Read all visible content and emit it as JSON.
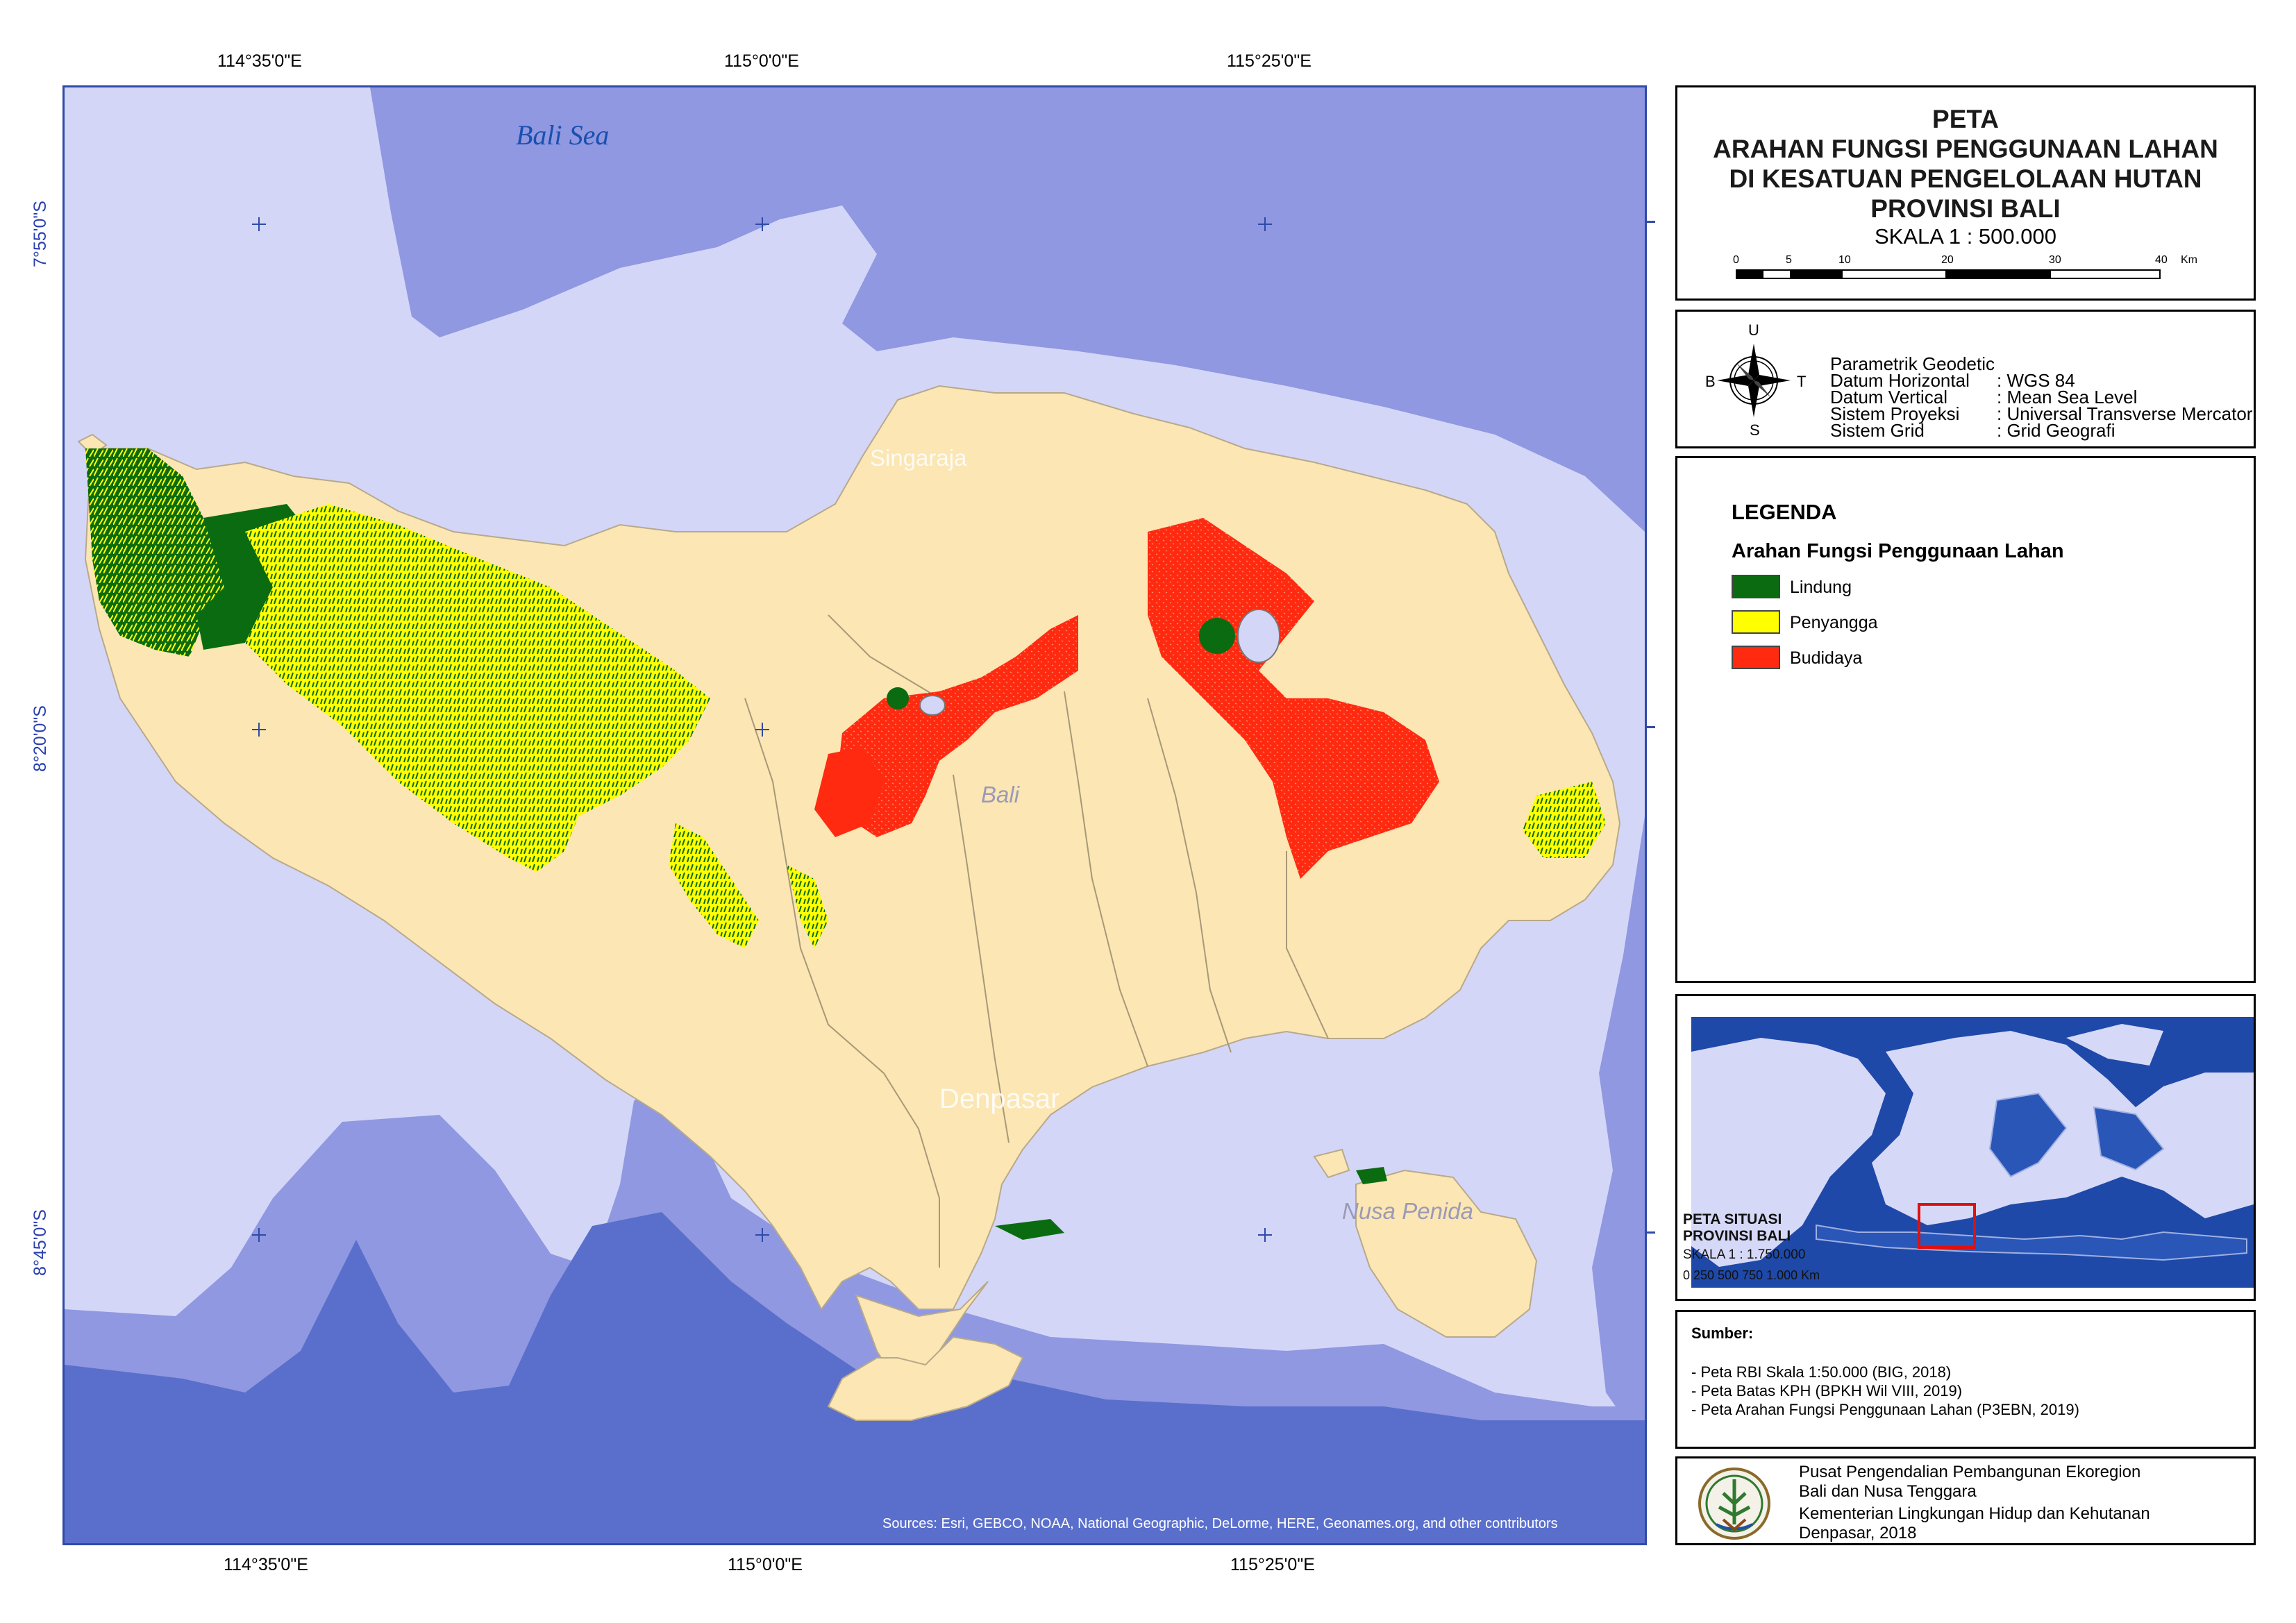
{
  "coordinates": {
    "top_lon": [
      "114°35'0\"E",
      "115°0'0\"E",
      "115°25'0\"E"
    ],
    "bottom_lon": [
      "114°35'0\"E",
      "115°0'0\"E",
      "115°25'0\"E"
    ],
    "left_lat": [
      "7°55'0\"S",
      "8°20'0\"S",
      "8°45'0\"S"
    ]
  },
  "map": {
    "sea_label": "Bali Sea",
    "places": [
      "Singaraja",
      "Bali",
      "Denpasar",
      "Nusa Penida"
    ],
    "attribution": "Sources: Esri, GEBCO, NOAA, National Geographic, DeLorme, HERE, Geonames.org, and other contributors",
    "colors": {
      "sea_light": "#d4d6f8",
      "sea_mid": "#8f98e0",
      "sea_deep": "#5a6fcc",
      "land": "#fbe6b4",
      "lindung": "#0b6b10",
      "penyangga": "#ffff00",
      "budidaya": "#ff2a10"
    }
  },
  "title": {
    "lines": [
      "PETA",
      "ARAHAN FUNGSI PENGGUNAAN LAHAN",
      "DI KESATUAN PENGELOLAAN HUTAN",
      "PROVINSI BALI"
    ],
    "scale": "SKALA  1 : 500.000",
    "scalebar_ticks": [
      "0",
      "5",
      "10",
      "20",
      "30",
      "40"
    ],
    "scalebar_unit": "Km"
  },
  "params": {
    "compass": {
      "n": "U",
      "s": "S",
      "w": "B",
      "e": "T"
    },
    "heading": "Parametrik Geodetic",
    "rows": [
      {
        "label": "Datum Horizontal",
        "value": ": WGS 84"
      },
      {
        "label": "Datum Vertical",
        "value": ": Mean Sea Level"
      },
      {
        "label": "Sistem Proyeksi",
        "value": ": Universal Transverse Mercator"
      },
      {
        "label": "Sistem Grid",
        "value": ": Grid Geografi"
      }
    ]
  },
  "legend": {
    "title": "LEGENDA",
    "subtitle": "Arahan Fungsi Penggunaan Lahan",
    "items": [
      {
        "label": "Lindung",
        "color": "#0b6b10"
      },
      {
        "label": "Penyangga",
        "color": "#ffff00"
      },
      {
        "label": "Budidaya",
        "color": "#ff2a10"
      }
    ]
  },
  "inset": {
    "title1": "PETA SITUASI",
    "title2": "PROVINSI BALI",
    "scale": "SKALA  1 : 1.750.000",
    "scalebar": "0 250 500 750 1.000  Km"
  },
  "sources": {
    "heading": "Sumber:",
    "items": [
      "-  Peta RBI Skala 1:50.000 (BIG, 2018)",
      "-  Peta Batas KPH (BPKH Wil VIII, 2019)",
      "-  Peta Arahan Fungsi Penggunaan Lahan (P3EBN, 2019)"
    ]
  },
  "credit": {
    "lines": [
      "Pusat Pengendalian Pembangunan Ekoregion",
      "Bali dan Nusa Tenggara",
      "Kementerian Lingkungan Hidup dan Kehutanan",
      "Denpasar, 2018"
    ]
  }
}
